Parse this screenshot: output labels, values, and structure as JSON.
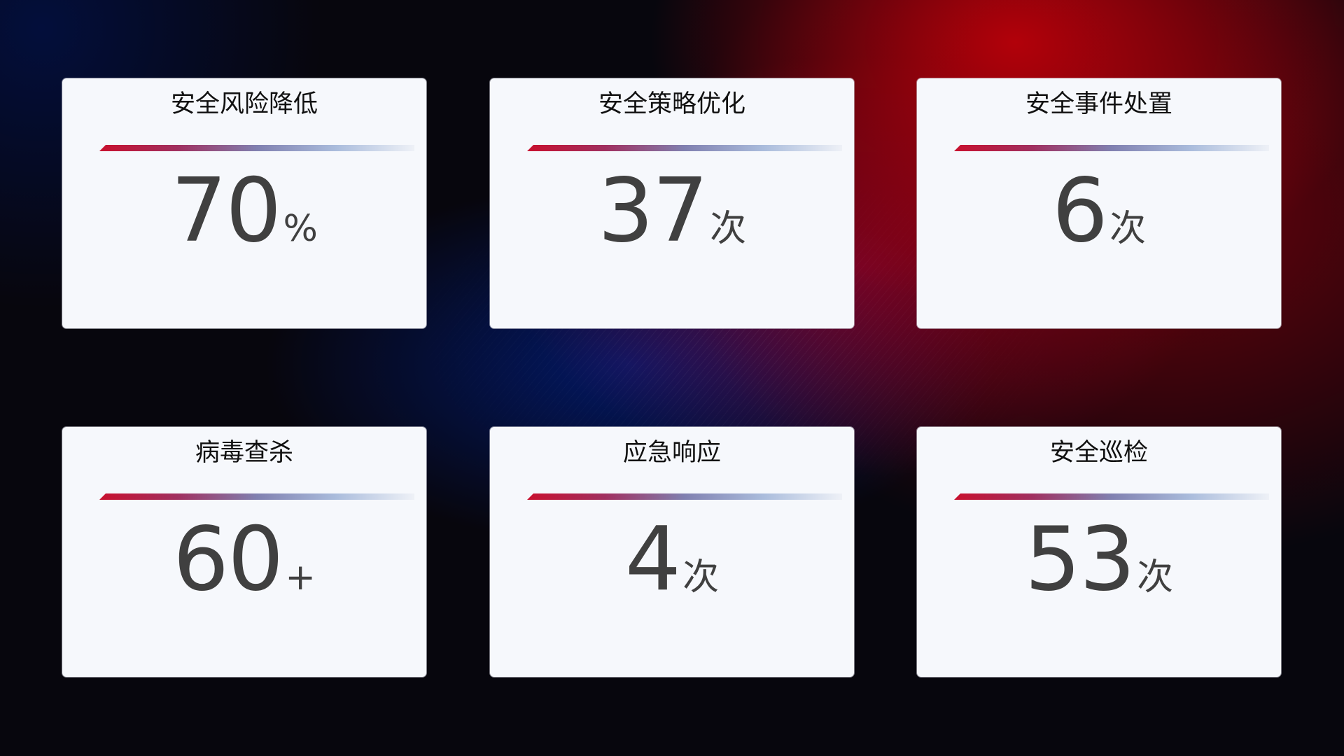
{
  "cards": [
    {
      "title": "安全风险降低",
      "value": "70",
      "unit": "%"
    },
    {
      "title": "安全策略优化",
      "value": "37",
      "unit": "次"
    },
    {
      "title": "安全事件处置",
      "value": "6",
      "unit": "次"
    },
    {
      "title": "病毒查杀",
      "value": "60",
      "unit": "+"
    },
    {
      "title": "应急响应",
      "value": "4",
      "unit": "次"
    },
    {
      "title": "安全巡检",
      "value": "53",
      "unit": "次"
    }
  ],
  "colors": {
    "accent_red": "#c8102e",
    "accent_blue": "#8080b0",
    "card_bg": "#f6f8fc",
    "value_text": "#404040"
  }
}
